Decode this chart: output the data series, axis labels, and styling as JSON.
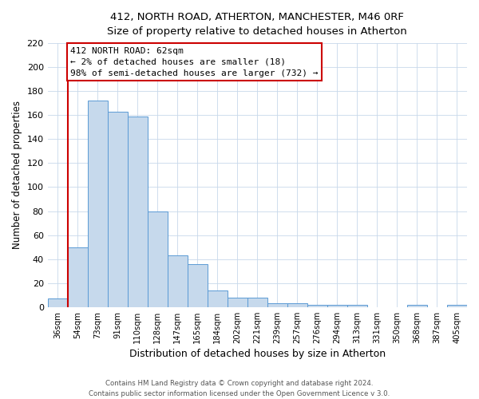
{
  "title1": "412, NORTH ROAD, ATHERTON, MANCHESTER, M46 0RF",
  "title2": "Size of property relative to detached houses in Atherton",
  "xlabel": "Distribution of detached houses by size in Atherton",
  "ylabel": "Number of detached properties",
  "footer1": "Contains HM Land Registry data © Crown copyright and database right 2024.",
  "footer2": "Contains public sector information licensed under the Open Government Licence v 3.0.",
  "bar_labels": [
    "36sqm",
    "54sqm",
    "73sqm",
    "91sqm",
    "110sqm",
    "128sqm",
    "147sqm",
    "165sqm",
    "184sqm",
    "202sqm",
    "221sqm",
    "239sqm",
    "257sqm",
    "276sqm",
    "294sqm",
    "313sqm",
    "331sqm",
    "350sqm",
    "368sqm",
    "387sqm",
    "405sqm"
  ],
  "bar_values": [
    7,
    50,
    172,
    163,
    159,
    80,
    43,
    36,
    14,
    8,
    8,
    3,
    3,
    2,
    2,
    2,
    0,
    0,
    2,
    0,
    2
  ],
  "bar_color": "#c6d9ec",
  "bar_edge_color": "#5b9bd5",
  "vline_x": 0.5,
  "vline_color": "#cc0000",
  "annotation_title": "412 NORTH ROAD: 62sqm",
  "annotation_line1": "← 2% of detached houses are smaller (18)",
  "annotation_line2": "98% of semi-detached houses are larger (732) →",
  "annotation_box_color": "#ffffff",
  "annotation_box_edge_color": "#cc0000",
  "ylim": [
    0,
    220
  ],
  "yticks": [
    0,
    20,
    40,
    60,
    80,
    100,
    120,
    140,
    160,
    180,
    200,
    220
  ],
  "background_color": "#ffffff",
  "grid_color": "#c8d8ea"
}
